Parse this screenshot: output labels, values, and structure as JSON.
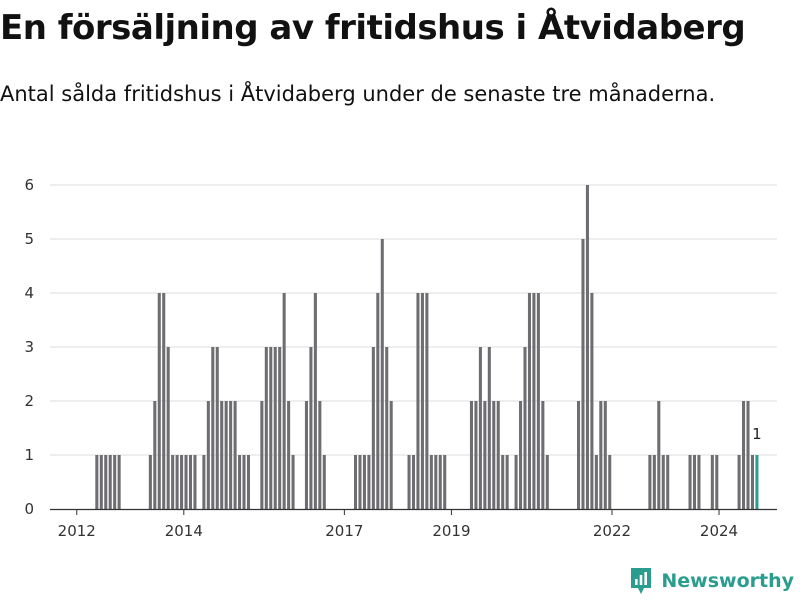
{
  "title": "En försäljning av fritidshus i Åtvidaberg",
  "subtitle": "Antal sålda fritidshus i Åtvidaberg under de senaste tre månaderna.",
  "brand": {
    "name": "Newsworthy",
    "icon": "newsworthy-logo-icon"
  },
  "chart_data": {
    "type": "bar",
    "xlabel": "",
    "ylabel": "",
    "ylim": [
      0,
      6
    ],
    "yticks": [
      0,
      1,
      2,
      3,
      4,
      5,
      6
    ],
    "grid": true,
    "x_start": "2011-07",
    "x_end": "2025-02",
    "xticks": [
      {
        "x": "2012-01",
        "label": "2012"
      },
      {
        "x": "2014-01",
        "label": "2014"
      },
      {
        "x": "2017-01",
        "label": "2017"
      },
      {
        "x": "2019-01",
        "label": "2019"
      },
      {
        "x": "2022-01",
        "label": "2022"
      },
      {
        "x": "2024-01",
        "label": "2024"
      }
    ],
    "colors": {
      "bar": "#6e6e72",
      "highlight": "#2a9d8f",
      "grid": "#dddddd",
      "axis": "#333333"
    },
    "bars": [
      {
        "x": "2012-05",
        "y": 1
      },
      {
        "x": "2012-06",
        "y": 1
      },
      {
        "x": "2012-07",
        "y": 1
      },
      {
        "x": "2012-08",
        "y": 1
      },
      {
        "x": "2012-09",
        "y": 1
      },
      {
        "x": "2012-10",
        "y": 1
      },
      {
        "x": "2013-05",
        "y": 1
      },
      {
        "x": "2013-06",
        "y": 2
      },
      {
        "x": "2013-07",
        "y": 4
      },
      {
        "x": "2013-08",
        "y": 4
      },
      {
        "x": "2013-09",
        "y": 3
      },
      {
        "x": "2013-10",
        "y": 1
      },
      {
        "x": "2013-11",
        "y": 1
      },
      {
        "x": "2013-12",
        "y": 1
      },
      {
        "x": "2014-01",
        "y": 1
      },
      {
        "x": "2014-02",
        "y": 1
      },
      {
        "x": "2014-03",
        "y": 1
      },
      {
        "x": "2014-05",
        "y": 1
      },
      {
        "x": "2014-06",
        "y": 2
      },
      {
        "x": "2014-07",
        "y": 3
      },
      {
        "x": "2014-08",
        "y": 3
      },
      {
        "x": "2014-09",
        "y": 2
      },
      {
        "x": "2014-10",
        "y": 2
      },
      {
        "x": "2014-11",
        "y": 2
      },
      {
        "x": "2014-12",
        "y": 2
      },
      {
        "x": "2015-01",
        "y": 1
      },
      {
        "x": "2015-02",
        "y": 1
      },
      {
        "x": "2015-03",
        "y": 1
      },
      {
        "x": "2015-06",
        "y": 2
      },
      {
        "x": "2015-07",
        "y": 3
      },
      {
        "x": "2015-08",
        "y": 3
      },
      {
        "x": "2015-09",
        "y": 3
      },
      {
        "x": "2015-10",
        "y": 3
      },
      {
        "x": "2015-11",
        "y": 4
      },
      {
        "x": "2015-12",
        "y": 2
      },
      {
        "x": "2016-01",
        "y": 1
      },
      {
        "x": "2016-04",
        "y": 2
      },
      {
        "x": "2016-05",
        "y": 3
      },
      {
        "x": "2016-06",
        "y": 4
      },
      {
        "x": "2016-07",
        "y": 2
      },
      {
        "x": "2016-08",
        "y": 1
      },
      {
        "x": "2017-03",
        "y": 1
      },
      {
        "x": "2017-04",
        "y": 1
      },
      {
        "x": "2017-05",
        "y": 1
      },
      {
        "x": "2017-06",
        "y": 1
      },
      {
        "x": "2017-07",
        "y": 3
      },
      {
        "x": "2017-08",
        "y": 4
      },
      {
        "x": "2017-09",
        "y": 5
      },
      {
        "x": "2017-10",
        "y": 3
      },
      {
        "x": "2017-11",
        "y": 2
      },
      {
        "x": "2018-03",
        "y": 1
      },
      {
        "x": "2018-04",
        "y": 1
      },
      {
        "x": "2018-05",
        "y": 4
      },
      {
        "x": "2018-06",
        "y": 4
      },
      {
        "x": "2018-07",
        "y": 4
      },
      {
        "x": "2018-08",
        "y": 1
      },
      {
        "x": "2018-09",
        "y": 1
      },
      {
        "x": "2018-10",
        "y": 1
      },
      {
        "x": "2018-11",
        "y": 1
      },
      {
        "x": "2019-05",
        "y": 2
      },
      {
        "x": "2019-06",
        "y": 2
      },
      {
        "x": "2019-07",
        "y": 3
      },
      {
        "x": "2019-08",
        "y": 2
      },
      {
        "x": "2019-09",
        "y": 3
      },
      {
        "x": "2019-10",
        "y": 2
      },
      {
        "x": "2019-11",
        "y": 2
      },
      {
        "x": "2019-12",
        "y": 1
      },
      {
        "x": "2020-01",
        "y": 1
      },
      {
        "x": "2020-03",
        "y": 1
      },
      {
        "x": "2020-04",
        "y": 2
      },
      {
        "x": "2020-05",
        "y": 3
      },
      {
        "x": "2020-06",
        "y": 4
      },
      {
        "x": "2020-07",
        "y": 4
      },
      {
        "x": "2020-08",
        "y": 4
      },
      {
        "x": "2020-09",
        "y": 2
      },
      {
        "x": "2020-10",
        "y": 1
      },
      {
        "x": "2021-05",
        "y": 2
      },
      {
        "x": "2021-06",
        "y": 5
      },
      {
        "x": "2021-07",
        "y": 6
      },
      {
        "x": "2021-08",
        "y": 4
      },
      {
        "x": "2021-09",
        "y": 1
      },
      {
        "x": "2021-10",
        "y": 2
      },
      {
        "x": "2021-11",
        "y": 2
      },
      {
        "x": "2021-12",
        "y": 1
      },
      {
        "x": "2022-09",
        "y": 1
      },
      {
        "x": "2022-10",
        "y": 1
      },
      {
        "x": "2022-11",
        "y": 2
      },
      {
        "x": "2022-12",
        "y": 1
      },
      {
        "x": "2023-01",
        "y": 1
      },
      {
        "x": "2023-06",
        "y": 1
      },
      {
        "x": "2023-07",
        "y": 1
      },
      {
        "x": "2023-08",
        "y": 1
      },
      {
        "x": "2023-11",
        "y": 1
      },
      {
        "x": "2023-12",
        "y": 1
      },
      {
        "x": "2024-05",
        "y": 1
      },
      {
        "x": "2024-06",
        "y": 2
      },
      {
        "x": "2024-07",
        "y": 2
      },
      {
        "x": "2024-08",
        "y": 1
      },
      {
        "x": "2024-09",
        "y": 1,
        "highlight": true,
        "label": "1"
      }
    ]
  }
}
